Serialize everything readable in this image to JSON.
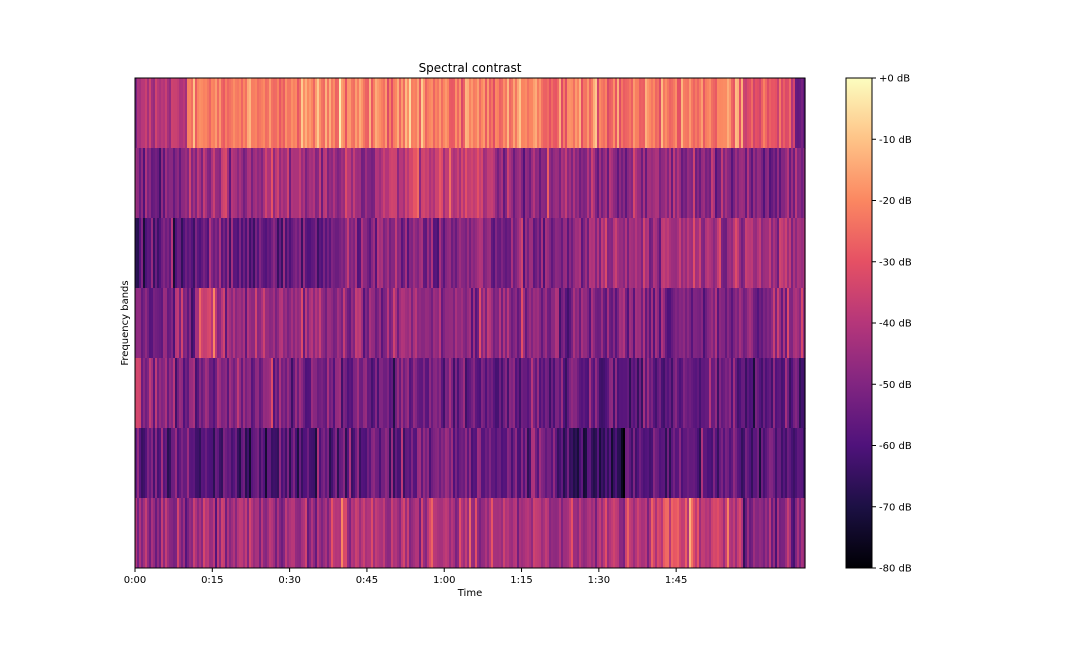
{
  "chart_data": {
    "type": "heatmap",
    "title": "Spectral contrast",
    "xlabel": "Time",
    "ylabel": "Frequency bands",
    "x_unit": "seconds",
    "xlim": [
      0,
      130
    ],
    "x_ticks": [
      0,
      15,
      30,
      45,
      60,
      75,
      90,
      105
    ],
    "x_tick_labels": [
      "0:00",
      "0:15",
      "0:30",
      "0:45",
      "1:00",
      "1:15",
      "1:30",
      "1:45"
    ],
    "bands": 7,
    "y_ticks": [],
    "colorbar": {
      "colormap": "magma",
      "range_db": [
        -80,
        0
      ],
      "ticks": [
        0,
        -10,
        -20,
        -30,
        -40,
        -50,
        -60,
        -70,
        -80
      ],
      "tick_labels": [
        "+0 dB",
        "-10 dB",
        "-20 dB",
        "-30 dB",
        "-40 dB",
        "-50 dB",
        "-60 dB",
        "-70 dB",
        "-80 dB"
      ]
    },
    "band_profiles_db": [
      {
        "band": 7,
        "segments": [
          {
            "t": [
              0,
              10
            ],
            "db": -42
          },
          {
            "t": [
              10,
              118
            ],
            "db": -22
          },
          {
            "t": [
              118,
              128
            ],
            "db": -30
          },
          {
            "t": [
              128,
              130
            ],
            "db": -52
          }
        ]
      },
      {
        "band": 6,
        "segments": [
          {
            "t": [
              0,
              10
            ],
            "db": -50
          },
          {
            "t": [
              10,
              47
            ],
            "db": -44
          },
          {
            "t": [
              47,
              70
            ],
            "db": -38
          },
          {
            "t": [
              70,
              118
            ],
            "db": -47
          },
          {
            "t": [
              118,
              130
            ],
            "db": -50
          }
        ]
      },
      {
        "band": 5,
        "segments": [
          {
            "t": [
              0,
              11
            ],
            "db": -58
          },
          {
            "t": [
              11,
              38
            ],
            "db": -56
          },
          {
            "t": [
              38,
              85
            ],
            "db": -50
          },
          {
            "t": [
              85,
              130
            ],
            "db": -44
          }
        ]
      },
      {
        "band": 4,
        "segments": [
          {
            "t": [
              0,
              12
            ],
            "db": -52
          },
          {
            "t": [
              12,
              16
            ],
            "db": -33
          },
          {
            "t": [
              16,
              38
            ],
            "db": -45
          },
          {
            "t": [
              38,
              78
            ],
            "db": -48
          },
          {
            "t": [
              78,
              130
            ],
            "db": -50
          }
        ]
      },
      {
        "band": 3,
        "segments": [
          {
            "t": [
              0,
              1
            ],
            "db": -32
          },
          {
            "t": [
              1,
              25
            ],
            "db": -50
          },
          {
            "t": [
              25,
              80
            ],
            "db": -54
          },
          {
            "t": [
              80,
              130
            ],
            "db": -56
          }
        ]
      },
      {
        "band": 2,
        "segments": [
          {
            "t": [
              0,
              11
            ],
            "db": -55
          },
          {
            "t": [
              11,
              38
            ],
            "db": -60
          },
          {
            "t": [
              38,
              82
            ],
            "db": -55
          },
          {
            "t": [
              82,
              95
            ],
            "db": -64
          },
          {
            "t": [
              95,
              130
            ],
            "db": -58
          }
        ]
      },
      {
        "band": 1,
        "segments": [
          {
            "t": [
              0,
              38
            ],
            "db": -47
          },
          {
            "t": [
              38,
              65
            ],
            "db": -40
          },
          {
            "t": [
              65,
              100
            ],
            "db": -43
          },
          {
            "t": [
              100,
              118
            ],
            "db": -33
          },
          {
            "t": [
              118,
              130
            ],
            "db": -50
          }
        ]
      }
    ]
  }
}
